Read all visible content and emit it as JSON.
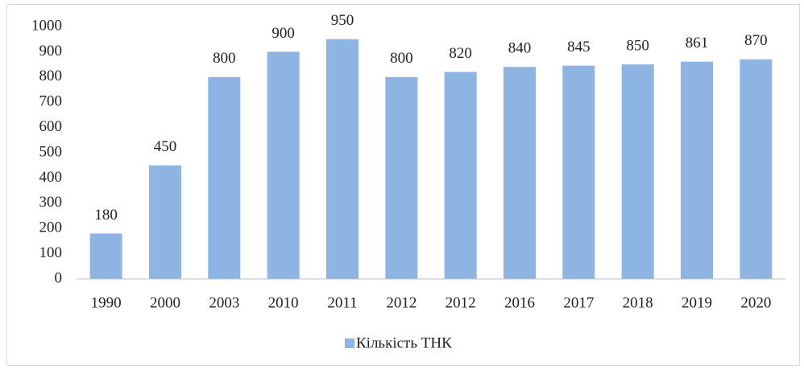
{
  "chart_data": {
    "type": "bar",
    "categories": [
      "1990",
      "2000",
      "2003",
      "2010",
      "2011",
      "2012",
      "2012",
      "2016",
      "2017",
      "2018",
      "2019",
      "2020"
    ],
    "series": [
      {
        "name": "Кількість ТНК",
        "color": "#8eb4e3",
        "values": [
          180,
          450,
          800,
          900,
          950,
          800,
          820,
          840,
          845,
          850,
          861,
          870
        ]
      }
    ],
    "ylim": [
      0,
      1000
    ],
    "yticks": [
      0,
      100,
      200,
      300,
      400,
      500,
      600,
      700,
      800,
      900,
      1000
    ],
    "grid": false,
    "data_labels": true,
    "legend": "bottom"
  }
}
